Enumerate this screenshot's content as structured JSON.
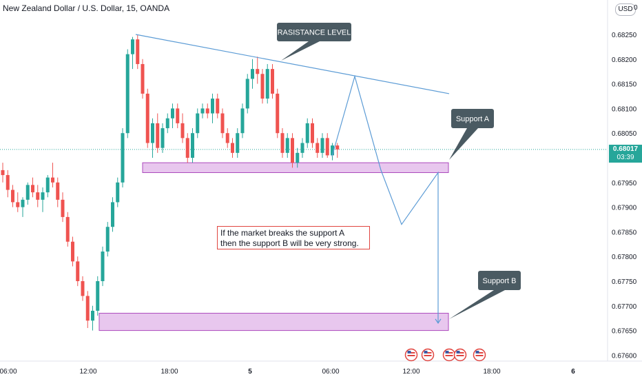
{
  "header": {
    "title": "New Zealand Dollar / U.S. Dollar, 15, OANDA",
    "currency_button": "USD",
    "currency_extra": "0"
  },
  "price_tag": {
    "price": "0.68017",
    "countdown": "03:39",
    "color": "#26a69a"
  },
  "note": {
    "line1": "If the market breaks the support  A",
    "line2": "then the support  B  will be very strong."
  },
  "callouts": {
    "resistance": "RASISTANCE LEVEL",
    "support_a": "Support A",
    "support_b": "Support B"
  },
  "colors": {
    "up": "#26a69a",
    "down": "#ef5350",
    "line": "#5b9bd5",
    "zone_fill": "#e8c7ee",
    "zone_border": "#ab47bc",
    "callout_bg": "#4a5a62",
    "note_border": "#e0443f"
  },
  "chart_data": {
    "type": "candlestick",
    "title": "New Zealand Dollar / U.S. Dollar, 15, OANDA",
    "x_tick_labels": [
      "06:00",
      "12:00",
      "18:00",
      "5",
      "06:00",
      "12:00",
      "18:00",
      "6"
    ],
    "y_tick_labels": [
      "0.68250",
      "0.68200",
      "0.68150",
      "0.68100",
      "0.68050",
      "0.67950",
      "0.67900",
      "0.67850",
      "0.67800",
      "0.67750",
      "0.67700",
      "0.67650",
      "0.67600"
    ],
    "ylim": [
      0.6759,
      0.6832
    ],
    "grid": false,
    "candles": [
      [
        0.67975,
        0.6799,
        0.6795,
        0.67965
      ],
      [
        0.67965,
        0.67975,
        0.6792,
        0.67935
      ],
      [
        0.67935,
        0.67945,
        0.679,
        0.6791
      ],
      [
        0.6791,
        0.6793,
        0.6789,
        0.679
      ],
      [
        0.679,
        0.6792,
        0.6788,
        0.67915
      ],
      [
        0.67915,
        0.6795,
        0.67905,
        0.67945
      ],
      [
        0.67945,
        0.6796,
        0.6792,
        0.6793
      ],
      [
        0.6793,
        0.67945,
        0.679,
        0.67915
      ],
      [
        0.67915,
        0.6794,
        0.6789,
        0.6793
      ],
      [
        0.6793,
        0.67965,
        0.6792,
        0.6796
      ],
      [
        0.6796,
        0.6799,
        0.6794,
        0.6795
      ],
      [
        0.6795,
        0.6796,
        0.679,
        0.67915
      ],
      [
        0.67915,
        0.6793,
        0.6787,
        0.6788
      ],
      [
        0.6788,
        0.6789,
        0.6782,
        0.6783
      ],
      [
        0.6783,
        0.6784,
        0.6778,
        0.6779
      ],
      [
        0.6779,
        0.678,
        0.6774,
        0.6775
      ],
      [
        0.6775,
        0.6776,
        0.6771,
        0.6772
      ],
      [
        0.6772,
        0.6773,
        0.67655,
        0.6767
      ],
      [
        0.6767,
        0.677,
        0.6765,
        0.6769
      ],
      [
        0.6769,
        0.6776,
        0.6768,
        0.6775
      ],
      [
        0.6775,
        0.6782,
        0.6774,
        0.6781
      ],
      [
        0.6781,
        0.6787,
        0.678,
        0.6786
      ],
      [
        0.6786,
        0.6792,
        0.6785,
        0.6791
      ],
      [
        0.6791,
        0.6796,
        0.679,
        0.6795
      ],
      [
        0.6795,
        0.6806,
        0.6794,
        0.6805
      ],
      [
        0.6805,
        0.6822,
        0.6804,
        0.6821
      ],
      [
        0.6821,
        0.68245,
        0.6818,
        0.6824
      ],
      [
        0.6824,
        0.6825,
        0.6818,
        0.6819
      ],
      [
        0.6819,
        0.682,
        0.6812,
        0.6813
      ],
      [
        0.6813,
        0.6814,
        0.6802,
        0.6803
      ],
      [
        0.6803,
        0.6808,
        0.68,
        0.6807
      ],
      [
        0.6807,
        0.6809,
        0.6801,
        0.6802
      ],
      [
        0.6802,
        0.6807,
        0.6801,
        0.6806
      ],
      [
        0.6806,
        0.6809,
        0.6805,
        0.6808
      ],
      [
        0.6808,
        0.6811,
        0.6806,
        0.681
      ],
      [
        0.681,
        0.6811,
        0.6806,
        0.6807
      ],
      [
        0.6807,
        0.6809,
        0.6803,
        0.6804
      ],
      [
        0.6804,
        0.6805,
        0.6799,
        0.68
      ],
      [
        0.68,
        0.6806,
        0.6799,
        0.6805
      ],
      [
        0.6805,
        0.681,
        0.6804,
        0.6809
      ],
      [
        0.6809,
        0.6811,
        0.6808,
        0.681
      ],
      [
        0.681,
        0.6811,
        0.6808,
        0.6809
      ],
      [
        0.6809,
        0.6813,
        0.6807,
        0.6812
      ],
      [
        0.6812,
        0.6813,
        0.6808,
        0.6809
      ],
      [
        0.6809,
        0.681,
        0.6804,
        0.6805
      ],
      [
        0.6805,
        0.6806,
        0.6802,
        0.6803
      ],
      [
        0.6803,
        0.6804,
        0.68,
        0.6801
      ],
      [
        0.6801,
        0.6806,
        0.68,
        0.6805
      ],
      [
        0.6805,
        0.6811,
        0.6804,
        0.681
      ],
      [
        0.681,
        0.6817,
        0.6809,
        0.6816
      ],
      [
        0.6816,
        0.682,
        0.6814,
        0.6818
      ],
      [
        0.6818,
        0.68205,
        0.6815,
        0.6817
      ],
      [
        0.6817,
        0.6818,
        0.6811,
        0.6812
      ],
      [
        0.6812,
        0.6819,
        0.6811,
        0.6818
      ],
      [
        0.6818,
        0.6819,
        0.6812,
        0.6813
      ],
      [
        0.6813,
        0.6814,
        0.6804,
        0.6805
      ],
      [
        0.6805,
        0.6806,
        0.68,
        0.6801
      ],
      [
        0.6801,
        0.6805,
        0.68,
        0.6804
      ],
      [
        0.6804,
        0.6805,
        0.6798,
        0.6799
      ],
      [
        0.6799,
        0.6802,
        0.6798,
        0.6801
      ],
      [
        0.6801,
        0.6804,
        0.68,
        0.6803
      ],
      [
        0.6803,
        0.6808,
        0.6802,
        0.6807
      ],
      [
        0.6807,
        0.6808,
        0.6802,
        0.6803
      ],
      [
        0.6803,
        0.6804,
        0.68,
        0.6801
      ],
      [
        0.6801,
        0.6805,
        0.68,
        0.6804
      ],
      [
        0.6804,
        0.6805,
        0.68,
        0.68005
      ],
      [
        0.68005,
        0.6803,
        0.67995,
        0.68025
      ],
      [
        0.68025,
        0.6803,
        0.68,
        0.68017
      ]
    ],
    "zones": [
      {
        "name": "Support A",
        "y0": 0.6797,
        "y1": 0.6799
      },
      {
        "name": "Support B",
        "y0": 0.6765,
        "y1": 0.67685
      }
    ],
    "resistance_line": {
      "start": 0.6825,
      "end": 0.6813
    },
    "projection_path": [
      0.68003,
      0.68165,
      0.67975,
      0.67865,
      0.6797,
      0.67665
    ],
    "current_price": 0.68017
  }
}
